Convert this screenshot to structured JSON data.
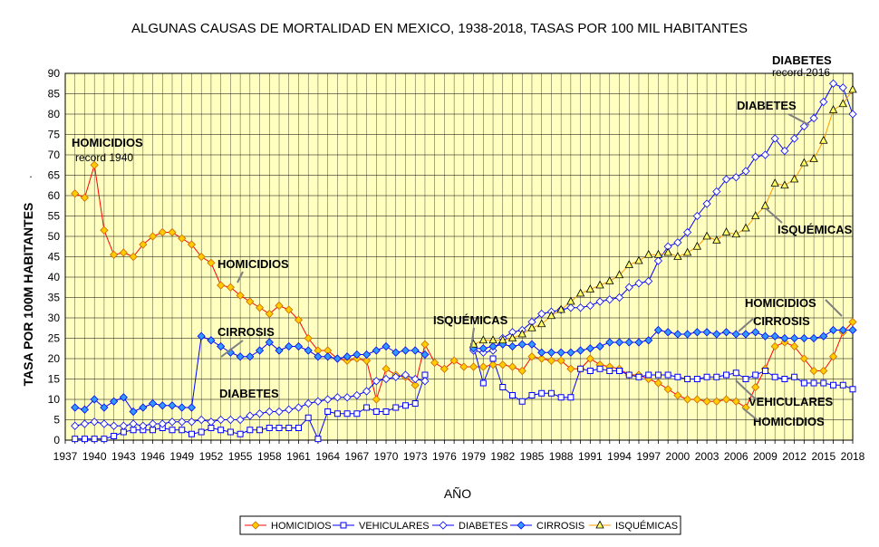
{
  "chart_data": {
    "type": "line",
    "title": "ALGUNAS CAUSAS DE MORTALIDAD EN MEXICO, 1938-2018, TASAS POR 100 MIL HABITANTES",
    "xlabel": "AÑO",
    "ylabel": "TASA POR 100M HABITANTES",
    "xlim": [
      1937,
      2018
    ],
    "ylim": [
      0,
      90
    ],
    "x_ticks": [
      1937,
      1940,
      1943,
      1946,
      1949,
      1952,
      1955,
      1958,
      1961,
      1964,
      1967,
      1970,
      1973,
      1976,
      1979,
      1982,
      1985,
      1988,
      1991,
      1994,
      1997,
      2000,
      2003,
      2006,
      2009,
      2012,
      2015,
      2018
    ],
    "y_ticks": [
      0,
      5,
      10,
      15,
      20,
      25,
      30,
      35,
      40,
      45,
      50,
      55,
      60,
      65,
      70,
      75,
      80,
      85,
      90
    ],
    "grid": true,
    "legend_position": "bottom",
    "series": [
      {
        "name": "HOMICIDIOS",
        "color": "#ff0000",
        "marker_color": "#ffcc00",
        "marker": "diamond",
        "x": [
          1938,
          1939,
          1940,
          1941,
          1942,
          1943,
          1944,
          1945,
          1946,
          1947,
          1948,
          1949,
          1950,
          1951,
          1952,
          1953,
          1954,
          1955,
          1956,
          1957,
          1958,
          1959,
          1960,
          1961,
          1962,
          1963,
          1964,
          1965,
          1966,
          1967,
          1968,
          1969,
          1970,
          1971,
          1972,
          1973,
          1974,
          1975,
          1976,
          1977,
          1978,
          1979,
          1980,
          1981,
          1982,
          1983,
          1984,
          1985,
          1986,
          1987,
          1988,
          1989,
          1990,
          1991,
          1992,
          1993,
          1994,
          1995,
          1996,
          1997,
          1998,
          1999,
          2000,
          2001,
          2002,
          2003,
          2004,
          2005,
          2006,
          2007,
          2008,
          2009,
          2010,
          2011,
          2012,
          2013,
          2014,
          2015,
          2016,
          2017,
          2018
        ],
        "y": [
          60.5,
          59.5,
          67.5,
          51.5,
          45.5,
          46,
          45,
          48,
          50,
          51,
          51,
          49.5,
          48,
          45,
          43.5,
          38,
          37.5,
          35.5,
          34,
          32.5,
          31,
          33,
          32,
          29.5,
          25,
          22,
          22,
          20,
          19.5,
          20,
          19.5,
          10,
          17.5,
          16,
          15.5,
          13.5,
          23.5,
          19,
          17.5,
          19.5,
          18,
          18,
          18,
          18.5,
          18.5,
          18,
          17,
          20.5,
          20,
          19.5,
          19.5,
          17.5,
          17.5,
          20,
          18.5,
          18,
          17.5,
          16,
          16,
          15,
          14,
          12.5,
          11,
          10,
          10,
          9.5,
          9.5,
          10,
          9.5,
          8,
          13,
          17.5,
          23,
          24,
          23,
          20,
          17,
          17,
          20.5,
          26.5,
          29
        ]
      },
      {
        "name": "VEHICULARES",
        "color": "#0000ff",
        "marker_color": "#ffffff",
        "marker": "square",
        "x": [
          1938,
          1939,
          1940,
          1941,
          1942,
          1943,
          1944,
          1945,
          1946,
          1947,
          1948,
          1949,
          1950,
          1951,
          1952,
          1953,
          1954,
          1955,
          1956,
          1957,
          1958,
          1959,
          1960,
          1961,
          1962,
          1963,
          1964,
          1965,
          1966,
          1967,
          1968,
          1969,
          1970,
          1971,
          1972,
          1973,
          1974,
          1979,
          1980,
          1981,
          1982,
          1983,
          1984,
          1985,
          1986,
          1987,
          1988,
          1989,
          1990,
          1991,
          1992,
          1993,
          1994,
          1995,
          1996,
          1997,
          1998,
          1999,
          2000,
          2001,
          2002,
          2003,
          2004,
          2005,
          2006,
          2007,
          2008,
          2009,
          2010,
          2011,
          2012,
          2013,
          2014,
          2015,
          2016,
          2017,
          2018
        ],
        "y": [
          0.3,
          0.3,
          0.3,
          0.3,
          1,
          2,
          2.5,
          2.5,
          2.5,
          3,
          2.5,
          2.5,
          1.5,
          2,
          3,
          2.5,
          2,
          1.5,
          2.5,
          2.5,
          3,
          3,
          3,
          3,
          5.5,
          0.3,
          7,
          6.5,
          6.5,
          6.5,
          8,
          7,
          7,
          8,
          8.5,
          9,
          16,
          23,
          14,
          20,
          13,
          11,
          9.5,
          11,
          11.5,
          11.5,
          10.5,
          10.5,
          17.5,
          17,
          17.5,
          17,
          17,
          16,
          15.5,
          16,
          16,
          16,
          15.5,
          15,
          15,
          15.5,
          15.5,
          16,
          16.5,
          15,
          16,
          17,
          15.5,
          15,
          15.5,
          14,
          14,
          14,
          13.5,
          13.5,
          12.5
        ]
      },
      {
        "name": "DIABETES",
        "color": "#0000ff",
        "marker_color": "#ffffff",
        "marker": "diamond",
        "x": [
          1938,
          1939,
          1940,
          1941,
          1942,
          1943,
          1944,
          1945,
          1946,
          1947,
          1948,
          1949,
          1950,
          1951,
          1952,
          1953,
          1954,
          1955,
          1956,
          1957,
          1958,
          1959,
          1960,
          1961,
          1962,
          1963,
          1964,
          1965,
          1966,
          1967,
          1968,
          1969,
          1970,
          1971,
          1972,
          1973,
          1974,
          1979,
          1980,
          1981,
          1982,
          1983,
          1984,
          1985,
          1986,
          1987,
          1988,
          1989,
          1990,
          1991,
          1992,
          1993,
          1994,
          1995,
          1996,
          1997,
          1998,
          1999,
          2000,
          2001,
          2002,
          2003,
          2004,
          2005,
          2006,
          2007,
          2008,
          2009,
          2010,
          2011,
          2012,
          2013,
          2014,
          2015,
          2016,
          2017,
          2018
        ],
        "y": [
          3.5,
          4,
          4.5,
          4,
          3.5,
          3.5,
          4,
          3.5,
          4,
          4,
          4.5,
          4.5,
          4.5,
          5,
          4.5,
          5,
          5,
          5,
          6,
          6.5,
          7,
          7,
          7.5,
          8,
          9,
          9.5,
          10,
          10.5,
          10.5,
          11,
          12,
          14.5,
          15,
          15.5,
          16,
          15,
          14.5,
          22,
          21.5,
          22,
          25,
          26.5,
          27,
          29,
          31,
          31.5,
          32,
          32.5,
          32.5,
          33,
          34,
          34.5,
          35,
          37.5,
          38.5,
          39,
          44,
          47.5,
          48.5,
          51,
          55,
          58,
          61,
          64,
          64.5,
          66,
          69.5,
          70,
          74,
          71,
          74,
          77,
          79,
          83,
          87.5,
          86.5,
          80
        ]
      },
      {
        "name": "CIRROSIS",
        "color": "#0000ff",
        "marker_color": "#3399ff",
        "marker": "diamond",
        "x": [
          1938,
          1939,
          1940,
          1941,
          1942,
          1943,
          1944,
          1945,
          1946,
          1947,
          1948,
          1949,
          1950,
          1951,
          1952,
          1953,
          1954,
          1955,
          1956,
          1957,
          1958,
          1959,
          1960,
          1961,
          1962,
          1963,
          1964,
          1965,
          1966,
          1967,
          1968,
          1969,
          1970,
          1971,
          1972,
          1973,
          1974,
          1979,
          1980,
          1981,
          1982,
          1983,
          1984,
          1985,
          1986,
          1987,
          1988,
          1989,
          1990,
          1991,
          1992,
          1993,
          1994,
          1995,
          1996,
          1997,
          1998,
          1999,
          2000,
          2001,
          2002,
          2003,
          2004,
          2005,
          2006,
          2007,
          2008,
          2009,
          2010,
          2011,
          2012,
          2013,
          2014,
          2015,
          2016,
          2017,
          2018
        ],
        "y": [
          8,
          7.5,
          10,
          8,
          9.5,
          10.5,
          7,
          8,
          9,
          8.5,
          8.5,
          8,
          8,
          25.5,
          24.5,
          23,
          21.5,
          20.5,
          20.5,
          22,
          24,
          22,
          23,
          23,
          22,
          20.5,
          20.5,
          20,
          20.5,
          21,
          21,
          22,
          23,
          21.5,
          22,
          22,
          21,
          22.5,
          22.5,
          23,
          23.5,
          23,
          23.5,
          23.5,
          21.5,
          21.5,
          21.5,
          21.5,
          22,
          22.5,
          23,
          24,
          24,
          24,
          24,
          24.5,
          27,
          26.5,
          26,
          26,
          26.5,
          26.5,
          26,
          26.5,
          26,
          26,
          26.5,
          25.5,
          25.5,
          25,
          25,
          25,
          25,
          25.5,
          27,
          27,
          27
        ]
      },
      {
        "name": "ISQUÉMICAS",
        "color": "#ff9900",
        "marker_color": "#ffff66",
        "marker": "triangle",
        "x": [
          1979,
          1980,
          1981,
          1982,
          1983,
          1984,
          1985,
          1986,
          1987,
          1988,
          1989,
          1990,
          1991,
          1992,
          1993,
          1994,
          1995,
          1996,
          1997,
          1998,
          1999,
          2000,
          2001,
          2002,
          2003,
          2004,
          2005,
          2006,
          2007,
          2008,
          2009,
          2010,
          2011,
          2012,
          2013,
          2014,
          2015,
          2016,
          2017,
          2018
        ],
        "y": [
          23.5,
          24.5,
          24.5,
          24.5,
          25,
          26,
          27.5,
          28.5,
          30.5,
          32,
          34,
          36,
          37,
          38,
          39,
          40.5,
          43,
          44,
          45.5,
          45.5,
          46,
          45,
          46,
          47.5,
          50,
          49,
          51,
          50.5,
          52,
          55,
          57.5,
          63,
          62.5,
          64,
          68,
          69,
          73.5,
          81,
          82.5,
          86
        ]
      }
    ],
    "annotations": [
      {
        "text": "HOMICIDIOS",
        "style": "bold"
      },
      {
        "text": "record 1940",
        "style": "normal"
      },
      {
        "text": "HOMICIDIOS",
        "style": "bold"
      },
      {
        "text": "CIRROSIS",
        "style": "bold"
      },
      {
        "text": "DIABETES",
        "style": "bold"
      },
      {
        "text": "ISQUÉMICAS",
        "style": "bold"
      },
      {
        "text": "DIABETES",
        "style": "bold"
      },
      {
        "text": "record 2016",
        "style": "normal"
      },
      {
        "text": "DIABETES",
        "style": "bold"
      },
      {
        "text": "ISQUÉMICAS",
        "style": "bold"
      },
      {
        "text": "HOMICIDIOS",
        "style": "bold"
      },
      {
        "text": "CIRROSIS",
        "style": "bold"
      },
      {
        "text": "VEHICULARES",
        "style": "bold"
      },
      {
        "text": "HOMICIDIOS",
        "style": "bold"
      }
    ]
  }
}
